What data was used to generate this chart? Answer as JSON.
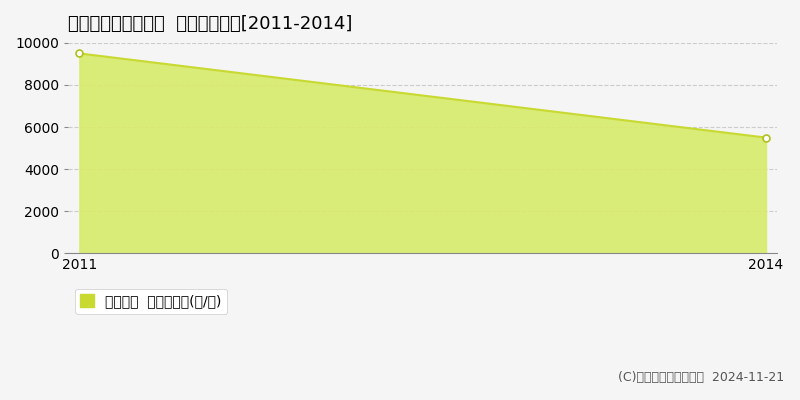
{
  "title": "宇陀郡曽爾村太良路  農地価格推移[2011-2014]",
  "x": [
    2011,
    2014
  ],
  "y": [
    9500,
    5500
  ],
  "ylim": [
    0,
    10000
  ],
  "xlim": [
    2011,
    2014
  ],
  "yticks": [
    0,
    2000,
    4000,
    6000,
    8000,
    10000
  ],
  "xticks": [
    2011,
    2014
  ],
  "line_color": "#c8d932",
  "fill_color": "#d8eb6a",
  "fill_alpha": 0.9,
  "marker_style": "o",
  "marker_facecolor": "white",
  "marker_edgecolor": "#b0c020",
  "marker_size": 5,
  "grid_color": "#bbbbbb",
  "grid_style": "--",
  "grid_alpha": 0.7,
  "background_color": "#f5f5f5",
  "legend_label": "農地価格  平均坪単価(円/坪)",
  "legend_square_color": "#c8d932",
  "copyright_text": "(C)土地価格ドットコム  2024-11-21",
  "title_fontsize": 13,
  "tick_fontsize": 10,
  "legend_fontsize": 10,
  "copyright_fontsize": 9
}
